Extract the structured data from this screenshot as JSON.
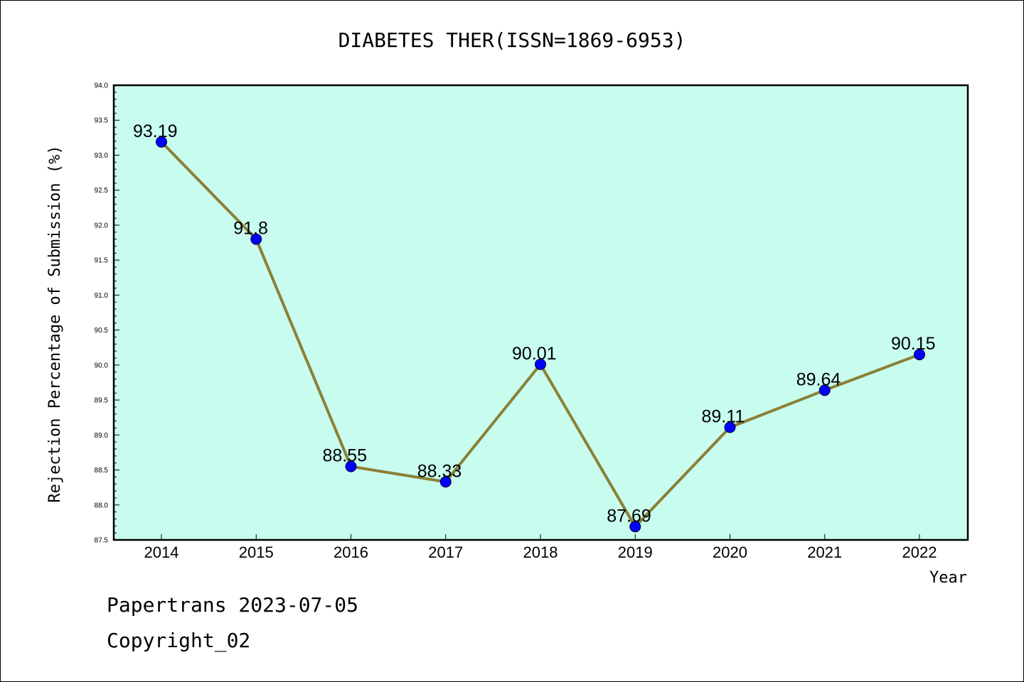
{
  "chart_data": {
    "type": "line",
    "title": "DIABETES THER(ISSN=1869-6953)",
    "xlabel": "Year",
    "ylabel": "Rejection Percentage of Submission (%)",
    "categories": [
      "2014",
      "2015",
      "2016",
      "2017",
      "2018",
      "2019",
      "2020",
      "2021",
      "2022"
    ],
    "values": [
      93.19,
      91.8,
      88.55,
      88.33,
      90.01,
      87.69,
      89.11,
      89.64,
      90.15
    ],
    "data_labels": [
      "93.19",
      "91.8",
      "88.55",
      "88.33",
      "90.01",
      "87.69",
      "89.11",
      "89.64",
      "90.15"
    ],
    "ylim": [
      87.5,
      94.0
    ],
    "yticks": [
      "87.5",
      "88.0",
      "88.5",
      "89.0",
      "89.5",
      "90.0",
      "90.5",
      "91.0",
      "91.5",
      "92.0",
      "92.5",
      "93.0",
      "93.5",
      "94.0"
    ],
    "grid": false,
    "colors": {
      "plot_background": "#c8fcee",
      "line": "#8b8036",
      "marker": "#0000ff"
    }
  },
  "footer": {
    "line1": "Papertrans 2023-07-05",
    "line2": "Copyright_02"
  }
}
